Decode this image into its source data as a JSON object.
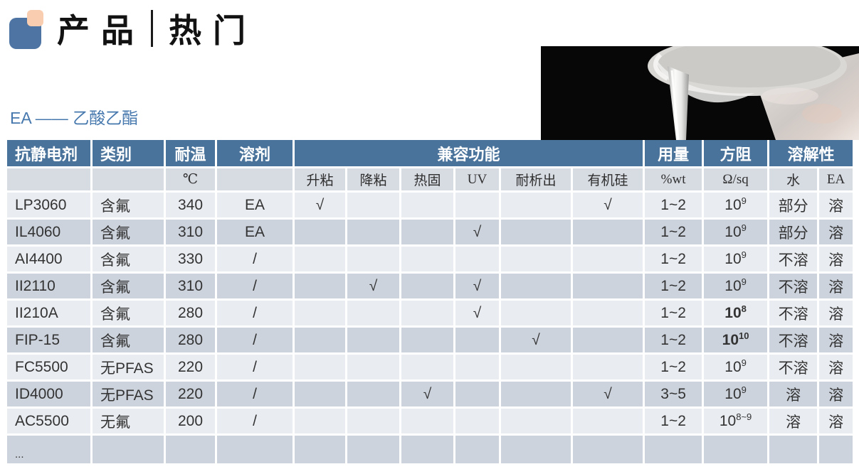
{
  "header": {
    "title_left": "产品",
    "title_right": "热门"
  },
  "section": {
    "subtitle": "EA —— 乙酸乙酯"
  },
  "colors": {
    "table_header_blue": "#4a739b",
    "row_light": "#e9ecf1",
    "row_dark": "#ccd3dd",
    "units_row_gray": "#d7dbe2",
    "logo_blue": "#4d74a3",
    "logo_peach": "#f9cdaf",
    "subtitle_blue": "#4678ae"
  },
  "table": {
    "check_mark": "√",
    "header": {
      "col_agent": "抗静电剂",
      "col_category": "类别",
      "col_temp": "耐温",
      "col_solvent": "溶剂",
      "col_compat": "兼容功能",
      "col_dosage": "用量",
      "col_resistance": "方阻",
      "col_solubility": "溶解性"
    },
    "subheader": {
      "temp_unit": "℃",
      "compat": [
        "升粘",
        "降粘",
        "热固",
        "UV",
        "耐析出",
        "有机硅"
      ],
      "dosage_unit": "%wt",
      "resistance_unit": "Ω/sq",
      "solubility": [
        "水",
        "EA"
      ]
    },
    "rows": [
      {
        "agent": "LP3060",
        "category": "含氟",
        "temp": "340",
        "solvent": "EA",
        "compat": [
          1,
          0,
          0,
          0,
          0,
          1
        ],
        "dosage": "1~2",
        "resistance": {
          "base": "10",
          "sup": "9",
          "bold": false
        },
        "water": "部分",
        "ea": "溶"
      },
      {
        "agent": "IL4060",
        "category": "含氟",
        "temp": "310",
        "solvent": "EA",
        "compat": [
          0,
          0,
          0,
          1,
          0,
          0
        ],
        "dosage": "1~2",
        "resistance": {
          "base": "10",
          "sup": "9",
          "bold": false
        },
        "water": "部分",
        "ea": "溶"
      },
      {
        "agent": "AI4400",
        "category": "含氟",
        "temp": "330",
        "solvent": "/",
        "compat": [
          0,
          0,
          0,
          0,
          0,
          0
        ],
        "dosage": "1~2",
        "resistance": {
          "base": "10",
          "sup": "9",
          "bold": false
        },
        "water": "不溶",
        "ea": "溶"
      },
      {
        "agent": "II2110",
        "category": "含氟",
        "temp": "310",
        "solvent": "/",
        "compat": [
          0,
          1,
          0,
          1,
          0,
          0
        ],
        "dosage": "1~2",
        "resistance": {
          "base": "10",
          "sup": "9",
          "bold": false
        },
        "water": "不溶",
        "ea": "溶"
      },
      {
        "agent": "II210A",
        "category": "含氟",
        "temp": "280",
        "solvent": "/",
        "compat": [
          0,
          0,
          0,
          1,
          0,
          0
        ],
        "dosage": "1~2",
        "resistance": {
          "base": "10",
          "sup": "8",
          "bold": true
        },
        "water": "不溶",
        "ea": "溶"
      },
      {
        "agent": "FIP-15",
        "category": "含氟",
        "temp": "280",
        "solvent": "/",
        "compat": [
          0,
          0,
          0,
          0,
          1,
          0
        ],
        "dosage": "1~2",
        "resistance": {
          "base": "10",
          "sup": "10",
          "bold": true
        },
        "water": "不溶",
        "ea": "溶"
      },
      {
        "agent": "FC5500",
        "category": "无PFAS",
        "temp": "220",
        "solvent": "/",
        "compat": [
          0,
          0,
          0,
          0,
          0,
          0
        ],
        "dosage": "1~2",
        "resistance": {
          "base": "10",
          "sup": "9",
          "bold": false
        },
        "water": "不溶",
        "ea": "溶"
      },
      {
        "agent": "ID4000",
        "category": "无PFAS",
        "temp": "220",
        "solvent": "/",
        "compat": [
          0,
          0,
          1,
          0,
          0,
          1
        ],
        "dosage": "3~5",
        "resistance": {
          "base": "10",
          "sup": "9",
          "bold": false
        },
        "water": "溶",
        "ea": "溶"
      },
      {
        "agent": "AC5500",
        "category": "无氟",
        "temp": "200",
        "solvent": "/",
        "compat": [
          0,
          0,
          0,
          0,
          0,
          0
        ],
        "dosage": "1~2",
        "resistance": {
          "base": "10",
          "sup": "8~9",
          "bold": false
        },
        "water": "溶",
        "ea": "溶"
      },
      {
        "agent": "...",
        "category": "",
        "temp": "",
        "solvent": "",
        "compat": [
          0,
          0,
          0,
          0,
          0,
          0
        ],
        "dosage": "",
        "resistance": null,
        "water": "",
        "ea": "",
        "ellipsis": true
      }
    ]
  }
}
